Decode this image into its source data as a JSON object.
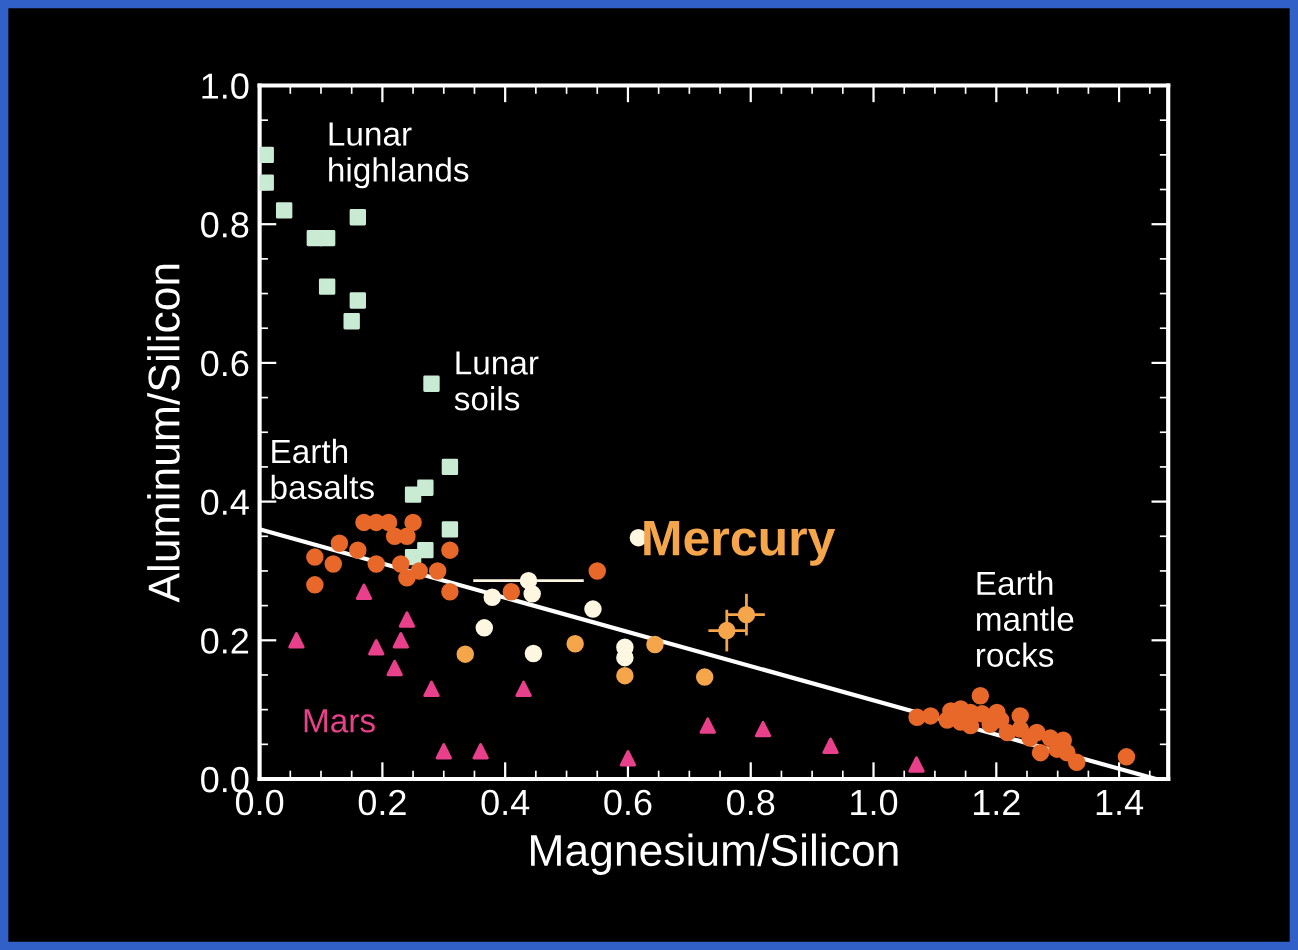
{
  "chart_data": {
    "type": "scatter",
    "xlabel": "Magnesium/Silicon",
    "ylabel": "Aluminum/Silicon",
    "xlim": [
      0,
      1.48
    ],
    "ylim": [
      0,
      1.0
    ],
    "xticks": [
      {
        "value": 0,
        "label": "0.0"
      },
      0.2,
      0.4,
      0.6,
      0.8,
      {
        "value": 1,
        "label": "1.0"
      },
      1.2,
      1.4
    ],
    "yticks": [
      {
        "value": 0,
        "label": "0.0"
      },
      0.2,
      0.4,
      0.6,
      0.8,
      {
        "value": 1,
        "label": "1.0"
      }
    ],
    "series": [
      {
        "name": "Lunar\nhighlands",
        "marker": "square",
        "color": "#c9ead3",
        "x": [
          0.01,
          0.01,
          0.04,
          0.09,
          0.11,
          0.16,
          0.11,
          0.16,
          0.15
        ],
        "values": [
          0.9,
          0.86,
          0.82,
          0.78,
          0.78,
          0.81,
          0.71,
          0.69,
          0.66
        ]
      },
      {
        "name": "Lunar\nsoils",
        "marker": "square",
        "color": "#c9ead3",
        "x": [
          0.28,
          0.31,
          0.25,
          0.27,
          0.31,
          0.27,
          0.25
        ],
        "values": [
          0.57,
          0.45,
          0.41,
          0.42,
          0.36,
          0.33,
          0.32
        ]
      },
      {
        "name": "Earth\nbasalts",
        "marker": "circle",
        "color": "#e8682a",
        "x": [
          0.09,
          0.09,
          0.12,
          0.13,
          0.16,
          0.17,
          0.19,
          0.19,
          0.21,
          0.22,
          0.24,
          0.25,
          0.23,
          0.24,
          0.26,
          0.29,
          0.31,
          0.31,
          0.41,
          0.55
        ],
        "values": [
          0.32,
          0.28,
          0.31,
          0.34,
          0.33,
          0.37,
          0.37,
          0.31,
          0.37,
          0.35,
          0.35,
          0.37,
          0.31,
          0.29,
          0.3,
          0.3,
          0.33,
          0.27,
          0.27,
          0.3
        ]
      },
      {
        "name": "Earth\nmantle\nrocks",
        "marker": "circle",
        "color": "#e8682a",
        "x": [
          1.071,
          1.093,
          1.12,
          1.126,
          1.142,
          1.142,
          1.158,
          1.158,
          1.174,
          1.177,
          1.19,
          1.201,
          1.207,
          1.218,
          1.239,
          1.239,
          1.255,
          1.266,
          1.272,
          1.288,
          1.299,
          1.309,
          1.315,
          1.331,
          1.412
        ],
        "values": [
          0.089,
          0.091,
          0.085,
          0.098,
          0.101,
          0.082,
          0.096,
          0.077,
          0.12,
          0.094,
          0.079,
          0.096,
          0.085,
          0.067,
          0.091,
          0.072,
          0.059,
          0.067,
          0.038,
          0.059,
          0.043,
          0.056,
          0.038,
          0.024,
          0.032
        ]
      },
      {
        "name": "Mars",
        "marker": "triangle",
        "color": "#e8408a",
        "x": [
          0.06,
          0.17,
          0.19,
          0.23,
          0.24,
          0.22,
          0.28,
          0.43,
          0.3,
          0.36,
          0.6,
          0.73,
          0.82,
          0.93,
          1.07
        ],
        "values": [
          0.2,
          0.27,
          0.19,
          0.2,
          0.23,
          0.16,
          0.13,
          0.13,
          0.04,
          0.04,
          0.03,
          0.077,
          0.072,
          0.048,
          0.021
        ]
      },
      {
        "marker": "circle",
        "color": "#fdf6e0",
        "x": [
          0.617,
          0.379,
          0.438,
          0.444,
          0.543,
          0.366,
          0.446,
          0.595,
          0.595
        ],
        "values": [
          0.348,
          0.262,
          0.286,
          0.267,
          0.245,
          0.218,
          0.181,
          0.19,
          0.175
        ],
        "xerrors": [
          null,
          null,
          0.09,
          null,
          null,
          null,
          null,
          null,
          null
        ]
      },
      {
        "name": "Mercury",
        "marker": "circle",
        "color": "#f5a54a",
        "x": [
          0.335,
          0.514,
          0.644,
          0.595,
          0.725,
          0.761,
          0.793
        ],
        "values": [
          0.18,
          0.195,
          0.194,
          0.149,
          0.147,
          0.214,
          0.237
        ],
        "errors": [
          null,
          null,
          null,
          null,
          null,
          0.03,
          0.03
        ],
        "xerrors": [
          null,
          null,
          null,
          null,
          null,
          0.03,
          0.03
        ]
      },
      {
        "type": "line",
        "color": "#ffffff",
        "x": [
          0,
          1.46
        ],
        "values": [
          0.36,
          0
        ]
      }
    ]
  }
}
